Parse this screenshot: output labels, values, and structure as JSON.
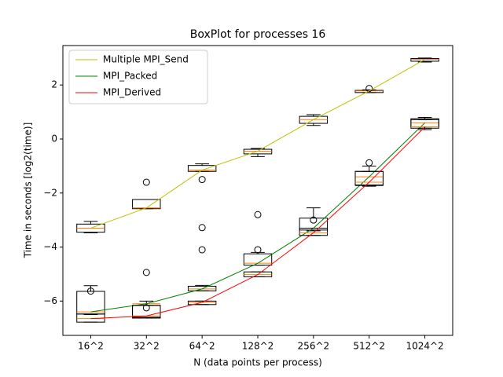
{
  "chart_data": {
    "type": "boxplot",
    "title": "BoxPlot for processes 16",
    "xlabel": "N (data points per process)",
    "ylabel": "Time in seconds [log2(time)]",
    "categories": [
      "16^2",
      "32^2",
      "64^2",
      "128^2",
      "256^2",
      "512^2",
      "1024^2"
    ],
    "ylim": [
      -7.27,
      3.46
    ],
    "yticks": [
      {
        "value": -6,
        "label": "−6"
      },
      {
        "value": -4,
        "label": "−4"
      },
      {
        "value": -2,
        "label": "−2"
      },
      0,
      2
    ],
    "legend": "upper left",
    "box_color": "#000000",
    "median_color": "#ff7f0e",
    "series": [
      {
        "name": "Multiple MPI_Send",
        "color": "#bfbf00",
        "whislo": [
          -3.47,
          -2.58,
          -1.2,
          -0.65,
          0.5,
          1.72,
          2.85
        ],
        "q1": [
          -3.45,
          -2.58,
          -1.2,
          -0.55,
          0.58,
          1.72,
          2.88
        ],
        "med": [
          -3.3,
          -2.55,
          -1.15,
          -0.45,
          0.72,
          1.78,
          2.95
        ],
        "q3": [
          -3.15,
          -2.24,
          -0.98,
          -0.38,
          0.84,
          1.8,
          2.98
        ],
        "whishi": [
          -3.05,
          -2.24,
          -0.92,
          -0.35,
          0.9,
          1.82,
          3.0
        ],
        "fliers": [
          [],
          [
            -1.6
          ],
          [
            -1.5
          ],
          [],
          [],
          [
            1.87
          ],
          []
        ]
      },
      {
        "name": "MPI_Packed",
        "color": "#008000",
        "whislo": [
          -6.5,
          -6.6,
          -5.62,
          -4.67,
          -3.4,
          -1.75,
          0.35
        ],
        "q1": [
          -6.48,
          -6.6,
          -5.62,
          -4.67,
          -3.37,
          -1.7,
          0.45
        ],
        "med": [
          -6.4,
          -6.1,
          -5.55,
          -4.6,
          -3.3,
          -1.4,
          0.6
        ],
        "q3": [
          -5.64,
          -6.16,
          -5.45,
          -4.25,
          -2.93,
          -1.2,
          0.75
        ],
        "whishi": [
          -5.43,
          -6.0,
          -5.42,
          -4.2,
          -2.55,
          -1.0,
          0.8
        ],
        "fliers": [
          [
            -5.63
          ],
          [
            -4.94,
            -6.25
          ],
          [
            -3.28,
            -4.1
          ],
          [
            -2.8,
            -4.1
          ],
          [
            -3.0
          ],
          [
            -0.88
          ],
          []
        ]
      },
      {
        "name": "MPI_Derived",
        "color": "#ff0000",
        "whislo": [
          -6.78,
          -6.63,
          -6.13,
          -5.1,
          -3.57,
          -1.72,
          0.4
        ],
        "q1": [
          -6.78,
          -6.63,
          -6.13,
          -5.1,
          -3.57,
          -1.72,
          0.4
        ],
        "med": [
          -6.65,
          -6.55,
          -6.05,
          -5.02,
          -3.47,
          -1.6,
          0.45
        ],
        "q3": [
          -6.48,
          -6.16,
          -6.0,
          -4.92,
          -3.3,
          -1.2,
          0.72
        ],
        "whishi": [
          -6.48,
          -6.16,
          -6.0,
          -4.92,
          -3.3,
          -1.2,
          0.72
        ],
        "fliers": [
          [],
          [],
          [],
          [],
          [],
          [],
          []
        ]
      }
    ]
  }
}
